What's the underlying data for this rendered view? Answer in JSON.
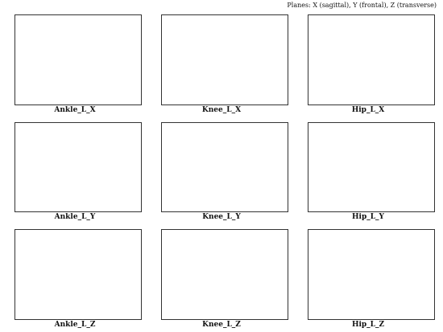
{
  "header": {
    "planes_note": "Planes: X (sagittal), Y (frontal), Z (transverse)"
  },
  "panels": [
    {
      "title": "Ankle_L_X"
    },
    {
      "title": "Knee_L_X"
    },
    {
      "title": "Hip_L_X"
    },
    {
      "title": "Ankle_L_Y"
    },
    {
      "title": "Knee_L_Y"
    },
    {
      "title": "Hip_L_Y"
    },
    {
      "title": "Ankle_L_Z"
    },
    {
      "title": "Knee_L_Z"
    },
    {
      "title": "Hip_L_Z"
    }
  ]
}
